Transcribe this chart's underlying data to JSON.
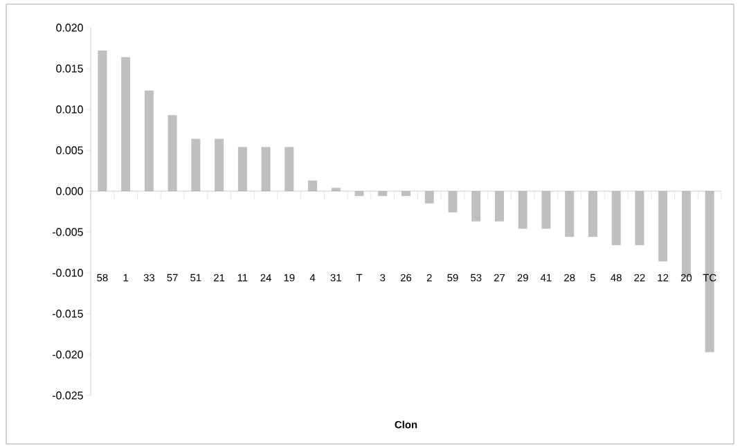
{
  "chart_data": {
    "type": "bar",
    "xlabel": "Clon",
    "categories": [
      "58",
      "1",
      "33",
      "57",
      "51",
      "21",
      "11",
      "24",
      "19",
      "4",
      "31",
      "T",
      "3",
      "26",
      "2",
      "59",
      "53",
      "27",
      "29",
      "41",
      "28",
      "5",
      "48",
      "22",
      "12",
      "20",
      "TC"
    ],
    "values": [
      0.0172,
      0.0164,
      0.0123,
      0.0093,
      0.0064,
      0.0064,
      0.0054,
      0.0054,
      0.0054,
      0.0013,
      0.0004,
      -0.0006,
      -0.0006,
      -0.0006,
      -0.0015,
      -0.0026,
      -0.0037,
      -0.0037,
      -0.0046,
      -0.0046,
      -0.0056,
      -0.0056,
      -0.0066,
      -0.0066,
      -0.0086,
      -0.0105,
      -0.0197
    ],
    "color": "#bfbfbf",
    "ylim": [
      -0.025,
      0.02
    ],
    "yticks": [
      {
        "value": -0.025,
        "label": "-0.025"
      },
      {
        "value": -0.02,
        "label": "-0.020"
      },
      {
        "value": -0.015,
        "label": "-0.015"
      },
      {
        "value": -0.01,
        "label": "-0.010"
      },
      {
        "value": -0.005,
        "label": "-0.005"
      },
      {
        "value": 0,
        "label": "0.000"
      },
      {
        "value": 0.005,
        "label": "0.005"
      },
      {
        "value": 0.01,
        "label": "0.010"
      },
      {
        "value": 0.015,
        "label": "0.015"
      },
      {
        "value": 0.02,
        "label": "0.020"
      }
    ]
  }
}
